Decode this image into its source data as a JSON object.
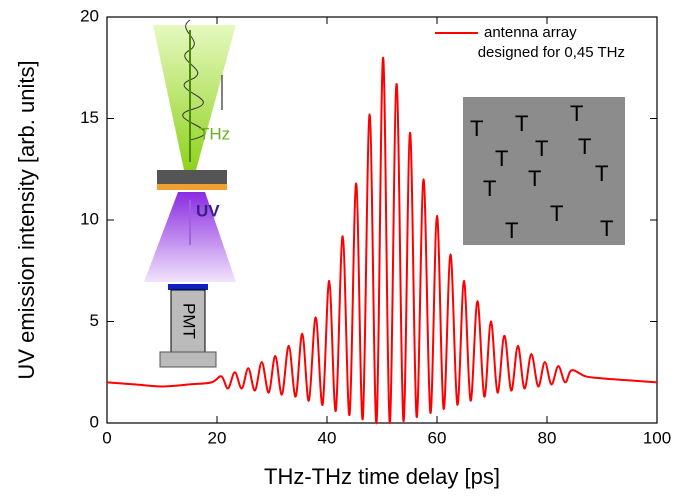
{
  "chart_data": {
    "type": "line",
    "xlabel": "THz-THz time delay [ps]",
    "ylabel": "UV emission intensity [arb. units]",
    "x": [
      0,
      5,
      10,
      15,
      19,
      20.8,
      22,
      23.25,
      24.5,
      25.7,
      26.9,
      28.15,
      29.4,
      30.6,
      31.8,
      33.05,
      34.3,
      35.5,
      36.7,
      37.95,
      39.2,
      40.4,
      41.6,
      42.85,
      44.1,
      45.3,
      46.5,
      47.75,
      49,
      50.2,
      51.4,
      52.65,
      53.9,
      55.1,
      56.3,
      57.55,
      58.8,
      60,
      61.2,
      62.45,
      63.7,
      64.9,
      66.1,
      67.35,
      68.6,
      69.8,
      71,
      72.25,
      73.5,
      74.7,
      75.9,
      77.15,
      78.4,
      79.6,
      80.8,
      82.05,
      83.3,
      84.5,
      87,
      90,
      95,
      100
    ],
    "series": [
      {
        "name": "antenna array",
        "color": "#ff0000",
        "values": [
          2.0,
          1.9,
          1.8,
          1.9,
          2.0,
          2.3,
          1.7,
          2.5,
          1.7,
          2.7,
          1.6,
          3.0,
          1.5,
          3.3,
          1.4,
          3.8,
          1.3,
          4.4,
          1.1,
          5.2,
          0.9,
          7.0,
          0.6,
          9.2,
          0.4,
          11.8,
          0.2,
          15.2,
          0,
          18.0,
          0,
          16.7,
          0.1,
          14.3,
          0.3,
          12.0,
          0.5,
          10.2,
          0.7,
          8.3,
          0.9,
          7.0,
          1.1,
          6.0,
          1.3,
          5.0,
          1.5,
          4.3,
          1.6,
          3.8,
          1.7,
          3.4,
          1.8,
          3.0,
          1.9,
          2.8,
          2.0,
          2.6,
          2.3,
          2.2,
          2.1,
          2.0
        ]
      }
    ],
    "annotations": [
      "designed for 0,45 THz",
      "THz",
      "UV",
      "PMT"
    ],
    "xlim": [
      0,
      100
    ],
    "xticks": [
      0,
      20,
      40,
      60,
      80,
      100
    ],
    "ylim": [
      0,
      20
    ],
    "yticks": [
      0,
      5,
      10,
      15,
      20
    ],
    "grid": false,
    "legend": "upper right"
  }
}
